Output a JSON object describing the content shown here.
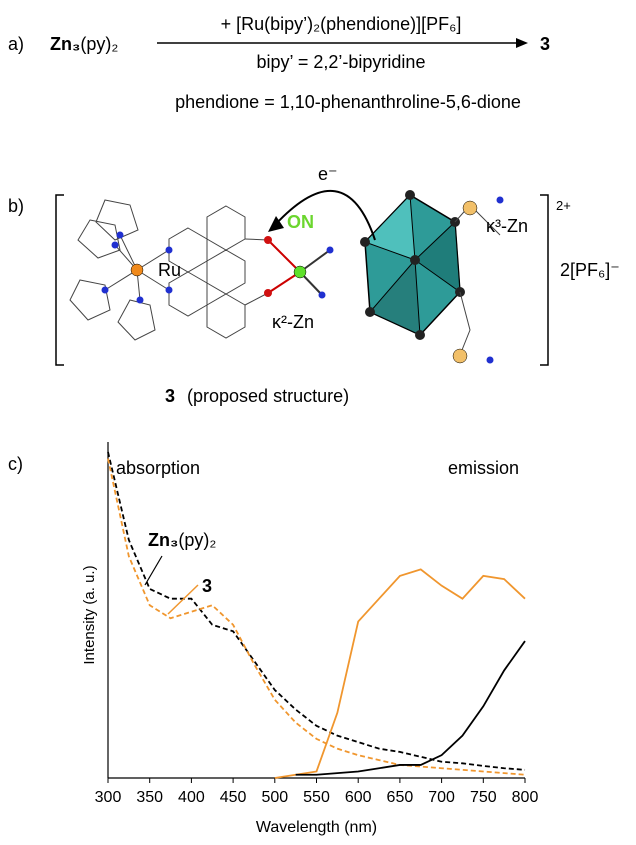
{
  "panel_a": {
    "label": "a)",
    "reactant": {
      "bold": "Zn₃",
      "rest": "(py)₂"
    },
    "reagent": "+ [Ru(bipy’)₂(phendione)][PF₆]",
    "condition": "bipy’ = 2,2’-bipyridine",
    "product": "3",
    "definition": "phendione = 1,10-phenanthroline-5,6-dione"
  },
  "panel_b": {
    "label": "b)",
    "electron": "e⁻",
    "switch": "ON",
    "ru": "Ru",
    "k3": "κ³-Zn",
    "k2": "κ²-Zn",
    "charge": "2+",
    "counterion": "2[PF₆]⁻",
    "caption_bold": "3",
    "caption": "(proposed structure)"
  },
  "chart_data": {
    "type": "line",
    "panel": "c)",
    "xlabel": "Wavelength (nm)",
    "ylabel": "Intensity (a. u.)",
    "regions": [
      "absorption",
      "emission"
    ],
    "annotations": [
      {
        "bold": "Zn₃",
        "rest": "(py)₂"
      },
      {
        "bold": "3"
      }
    ],
    "x": [
      300,
      325,
      350,
      375,
      400,
      425,
      450,
      475,
      500,
      525,
      550,
      575,
      600,
      625,
      650,
      675,
      700,
      725,
      750,
      775,
      800
    ],
    "xlim": [
      300,
      800
    ],
    "xticks": [
      300,
      350,
      400,
      450,
      500,
      550,
      600,
      650,
      700,
      750,
      800
    ],
    "ylim": [
      0,
      1
    ],
    "series": [
      {
        "color": "#000000",
        "dashed": true,
        "values": [
          1.0,
          0.73,
          0.58,
          0.55,
          0.55,
          0.47,
          0.45,
          0.36,
          0.27,
          0.21,
          0.16,
          0.13,
          0.11,
          0.09,
          0.08,
          0.065,
          0.05,
          0.045,
          0.037,
          0.03,
          0.025
        ]
      },
      {
        "color": "#f0962e",
        "dashed": true,
        "values": [
          0.98,
          0.68,
          0.53,
          0.49,
          0.51,
          0.53,
          0.47,
          0.35,
          0.24,
          0.17,
          0.12,
          0.09,
          0.07,
          0.055,
          0.04,
          0.035,
          0.03,
          0.025,
          0.02,
          0.015,
          0.01
        ]
      },
      {
        "color": "#f0962e",
        "dashed": false,
        "values": [
          null,
          null,
          null,
          null,
          null,
          null,
          null,
          null,
          0.0,
          0.01,
          0.02,
          0.2,
          0.48,
          0.55,
          0.62,
          0.64,
          0.59,
          0.55,
          0.62,
          0.61,
          0.55
        ]
      },
      {
        "color": "#000000",
        "dashed": false,
        "values": [
          null,
          null,
          null,
          null,
          null,
          null,
          null,
          null,
          null,
          0.01,
          0.01,
          0.015,
          0.02,
          0.03,
          0.04,
          0.04,
          0.07,
          0.13,
          0.22,
          0.33,
          0.42
        ]
      }
    ]
  }
}
